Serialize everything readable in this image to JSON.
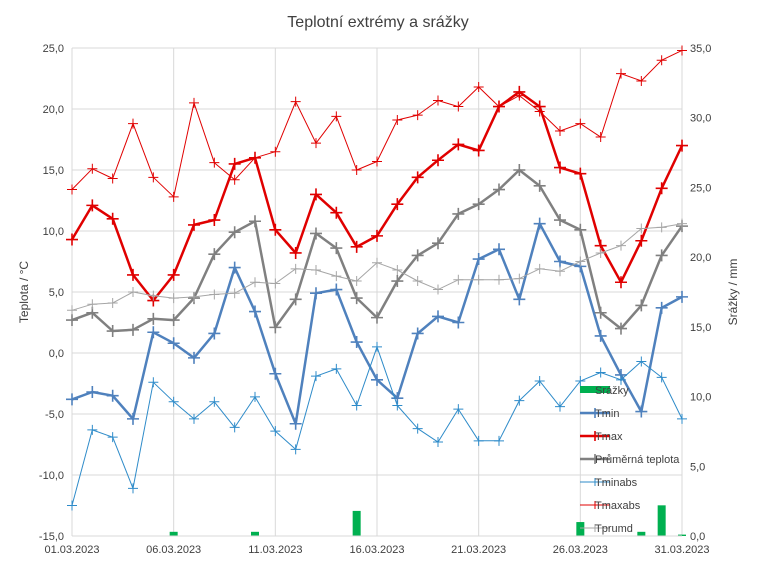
{
  "chart_data": {
    "type": "line",
    "title": "Teplotní extrémy a srážky",
    "ylabel": "Teplota / °C",
    "y2label": "Srážky / mm",
    "ylim": [
      -15,
      25
    ],
    "y2lim": [
      0,
      35
    ],
    "y_ticks": [
      "25,0",
      "20,0",
      "15,0",
      "10,0",
      "5,0",
      "0,0",
      "-5,0",
      "-10,0",
      "-15,0"
    ],
    "y2_ticks": [
      "35,0",
      "30,0",
      "25,0",
      "20,0",
      "15,0",
      "10,0",
      "5,0",
      "0,0"
    ],
    "x_tick_labels": [
      "01.03.2023",
      "06.03.2023",
      "11.03.2023",
      "16.03.2023",
      "21.03.2023",
      "26.03.2023",
      "31.03.2023"
    ],
    "x": [
      "01.03.2023",
      "02.03.2023",
      "03.03.2023",
      "04.03.2023",
      "05.03.2023",
      "06.03.2023",
      "07.03.2023",
      "08.03.2023",
      "09.03.2023",
      "10.03.2023",
      "11.03.2023",
      "12.03.2023",
      "13.03.2023",
      "14.03.2023",
      "15.03.2023",
      "16.03.2023",
      "17.03.2023",
      "18.03.2023",
      "19.03.2023",
      "20.03.2023",
      "21.03.2023",
      "22.03.2023",
      "23.03.2023",
      "24.03.2023",
      "25.03.2023",
      "26.03.2023",
      "27.03.2023",
      "28.03.2023",
      "29.03.2023",
      "30.03.2023",
      "31.03.2023"
    ],
    "grid": true,
    "legend_position": "bottom-right",
    "series": [
      {
        "name": "Srážky",
        "type": "bar",
        "axis": "right",
        "color": "#00b050",
        "values": [
          0,
          0,
          0,
          0,
          0,
          0.3,
          0,
          0,
          0,
          0.3,
          0,
          0,
          0,
          0,
          1.8,
          0,
          0,
          0,
          0,
          0,
          0,
          0,
          0,
          0,
          0,
          1,
          0,
          0,
          0.3,
          2.2,
          0.1
        ]
      },
      {
        "name": "Tmin",
        "type": "line",
        "axis": "left",
        "color": "#4f81bd",
        "width": 2.5,
        "values": [
          -3.8,
          -3.2,
          -3.5,
          -5.4,
          1.7,
          0.8,
          -0.4,
          1.6,
          7.0,
          3.4,
          -1.7,
          -5.8,
          4.9,
          5.2,
          0.9,
          -2.2,
          -3.7,
          1.6,
          3.0,
          2.5,
          7.7,
          8.5,
          4.4,
          10.6,
          7.5,
          7.1,
          1.4,
          -1.8,
          -4.8,
          3.7,
          4.6
        ]
      },
      {
        "name": "Tmax",
        "type": "line",
        "axis": "left",
        "color": "#e00000",
        "width": 2.5,
        "values": [
          9.3,
          12.1,
          11.0,
          6.4,
          4.3,
          6.4,
          10.5,
          10.9,
          15.5,
          16.0,
          10.1,
          8.2,
          13.0,
          11.5,
          8.7,
          9.6,
          12.2,
          14.4,
          15.8,
          17.1,
          16.6,
          20.2,
          21.4,
          20.2,
          15.2,
          14.7,
          8.8,
          5.8,
          9.2,
          13.5,
          17.0
        ]
      },
      {
        "name": "Průměrná teplota",
        "type": "line",
        "axis": "left",
        "color": "#808080",
        "width": 2.5,
        "values": [
          2.7,
          3.3,
          1.8,
          1.9,
          2.8,
          2.7,
          4.5,
          8.1,
          9.9,
          10.8,
          2.1,
          4.4,
          9.8,
          8.6,
          4.5,
          2.9,
          5.9,
          8.0,
          9.0,
          11.4,
          12.2,
          13.4,
          15.0,
          13.7,
          10.9,
          10.1,
          3.3,
          2.0,
          3.9,
          8.0,
          10.4
        ]
      },
      {
        "name": "Tminabs",
        "type": "line",
        "axis": "left",
        "color": "#2e8bc9",
        "width": 1,
        "values": [
          -12.5,
          -6.3,
          -6.9,
          -11.1,
          -2.4,
          -4.0,
          -5.4,
          -4.0,
          -6.1,
          -3.6,
          -6.4,
          -7.9,
          -1.9,
          -1.3,
          -4.3,
          0.5,
          -4.3,
          -6.2,
          -7.3,
          -4.6,
          -7.2,
          -7.2,
          -3.9,
          -2.3,
          -4.4,
          -2.3,
          -1.6,
          -2.2,
          -0.7,
          -2.0,
          -5.4
        ]
      },
      {
        "name": "Tmaxabs",
        "type": "line",
        "axis": "left",
        "color": "#e00000",
        "width": 1,
        "values": [
          13.4,
          15.1,
          14.3,
          18.8,
          14.4,
          12.8,
          20.5,
          15.6,
          14.2,
          16.0,
          16.5,
          20.6,
          17.2,
          19.4,
          15.0,
          15.7,
          19.1,
          19.5,
          20.7,
          20.2,
          21.8,
          20.2,
          21.1,
          19.8,
          18.2,
          18.8,
          17.7,
          22.9,
          22.3,
          24.0,
          24.8
        ]
      },
      {
        "name": "Tprumd",
        "type": "line",
        "axis": "left",
        "color": "#a6a6a6",
        "width": 1,
        "values": [
          3.5,
          4.0,
          4.1,
          5.0,
          4.7,
          4.5,
          4.6,
          4.8,
          4.9,
          5.8,
          5.7,
          6.9,
          6.8,
          6.3,
          5.9,
          7.4,
          6.8,
          5.9,
          5.2,
          6.0,
          6.0,
          6.0,
          6.1,
          6.9,
          6.7,
          7.5,
          8.2,
          8.8,
          10.2,
          10.3,
          10.6
        ]
      }
    ]
  }
}
